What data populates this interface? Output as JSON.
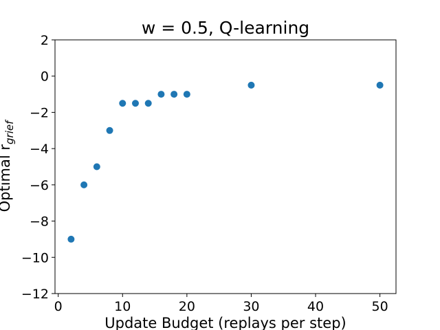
{
  "chart_data": {
    "type": "scatter",
    "title": "w = 0.5, Q-learning",
    "xlabel": "Update Budget (replays per step)",
    "ylabel": "Optimal r",
    "ylabel_subscript": "grief",
    "xlim": [
      -0.5,
      52.5
    ],
    "ylim": [
      -12,
      2
    ],
    "xticks": [
      0,
      10,
      20,
      30,
      40,
      50
    ],
    "yticks": [
      2,
      0,
      -2,
      -4,
      -6,
      -8,
      -10,
      -12
    ],
    "ytick_labels": [
      "2",
      "0",
      "−2",
      "−4",
      "−6",
      "−8",
      "−10",
      "−12"
    ],
    "grid": false,
    "marker_color": "#1f77b4",
    "points": [
      {
        "x": 2,
        "y": -9
      },
      {
        "x": 4,
        "y": -6
      },
      {
        "x": 6,
        "y": -5
      },
      {
        "x": 8,
        "y": -3
      },
      {
        "x": 10,
        "y": -1.5
      },
      {
        "x": 12,
        "y": -1.5
      },
      {
        "x": 14,
        "y": -1.5
      },
      {
        "x": 16,
        "y": -1
      },
      {
        "x": 18,
        "y": -1
      },
      {
        "x": 20,
        "y": -1
      },
      {
        "x": 30,
        "y": -0.5
      },
      {
        "x": 50,
        "y": -0.5
      }
    ]
  }
}
